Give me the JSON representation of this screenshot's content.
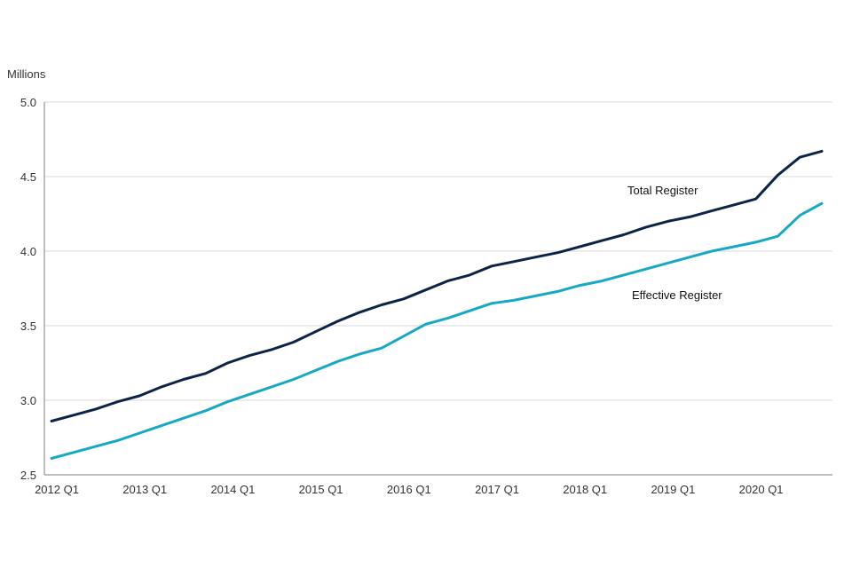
{
  "chart_data": {
    "type": "line",
    "unit_label": "Millions",
    "title": "",
    "xlabel": "",
    "ylabel": "",
    "x_ticks": [
      "2012 Q1",
      "2013 Q1",
      "2014 Q1",
      "2015 Q1",
      "2016 Q1",
      "2017 Q1",
      "2018 Q1",
      "2019 Q1",
      "2020 Q1"
    ],
    "y_ticks": [
      "5.0",
      "4.5",
      "4.0",
      "3.5",
      "3.0",
      "2.5"
    ],
    "ylim": [
      2.5,
      5.0
    ],
    "grid": "horizontal",
    "x": [
      "2012 Q1",
      "2012 Q2",
      "2012 Q3",
      "2012 Q4",
      "2013 Q1",
      "2013 Q2",
      "2013 Q3",
      "2013 Q4",
      "2014 Q1",
      "2014 Q2",
      "2014 Q3",
      "2014 Q4",
      "2015 Q1",
      "2015 Q2",
      "2015 Q3",
      "2015 Q4",
      "2016 Q1",
      "2016 Q2",
      "2016 Q3",
      "2016 Q4",
      "2017 Q1",
      "2017 Q2",
      "2017 Q3",
      "2017 Q4",
      "2018 Q1",
      "2018 Q2",
      "2018 Q3",
      "2018 Q4",
      "2019 Q1",
      "2019 Q2",
      "2019 Q3",
      "2019 Q4",
      "2020 Q1",
      "2020 Q2",
      "2020 Q3",
      "2020 Q4"
    ],
    "series": [
      {
        "name": "Total Register",
        "color": "#0b2447",
        "values": [
          2.86,
          2.9,
          2.94,
          2.99,
          3.03,
          3.09,
          3.14,
          3.18,
          3.25,
          3.3,
          3.34,
          3.39,
          3.46,
          3.53,
          3.59,
          3.64,
          3.68,
          3.74,
          3.8,
          3.84,
          3.9,
          3.93,
          3.96,
          3.99,
          4.03,
          4.07,
          4.11,
          4.16,
          4.2,
          4.23,
          4.27,
          4.31,
          4.35,
          4.51,
          4.63,
          4.67
        ]
      },
      {
        "name": "Effective Register",
        "color": "#17a8c6",
        "values": [
          2.61,
          2.65,
          2.69,
          2.73,
          2.78,
          2.83,
          2.88,
          2.93,
          2.99,
          3.04,
          3.09,
          3.14,
          3.2,
          3.26,
          3.31,
          3.35,
          3.43,
          3.51,
          3.55,
          3.6,
          3.65,
          3.67,
          3.7,
          3.73,
          3.77,
          3.8,
          3.84,
          3.88,
          3.92,
          3.96,
          4.0,
          4.03,
          4.06,
          4.1,
          4.24,
          4.32
        ]
      }
    ]
  }
}
